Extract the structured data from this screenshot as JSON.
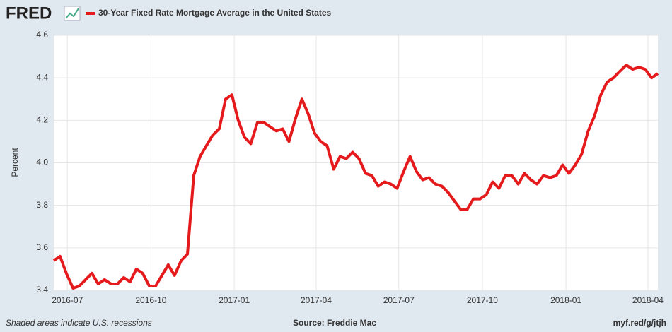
{
  "chart_data": {
    "type": "line",
    "logo": "FRED",
    "ylabel": "Percent",
    "footer_left": "Shaded areas indicate U.S. recessions",
    "footer_center": "Source: Freddie Mac",
    "footer_right": "myf.red/g/jtjh",
    "grid": true,
    "xlim": [
      2016.456,
      2018.277
    ],
    "ylim": [
      3.4,
      4.6
    ],
    "yticks": [
      3.4,
      3.6,
      3.8,
      {
        "value": 4,
        "label": "4.0"
      },
      4.2,
      4.4,
      4.6
    ],
    "xticks": [
      {
        "value": 2016.497,
        "label": "2016-07"
      },
      {
        "value": 2016.749,
        "label": "2016-10"
      },
      {
        "value": 2017.0,
        "label": "2017-01"
      },
      {
        "value": 2017.247,
        "label": "2017-04"
      },
      {
        "value": 2017.496,
        "label": "2017-07"
      },
      {
        "value": 2017.748,
        "label": "2017-10"
      },
      {
        "value": 2018.0,
        "label": "2018-01"
      },
      {
        "value": 2018.247,
        "label": "2018-04"
      }
    ],
    "x": [
      2016.456,
      2016.475,
      2016.494,
      2016.514,
      2016.533,
      2016.552,
      2016.571,
      2016.59,
      2016.609,
      2016.629,
      2016.648,
      2016.667,
      2016.686,
      2016.705,
      2016.724,
      2016.744,
      2016.763,
      2016.782,
      2016.801,
      2016.82,
      2016.84,
      2016.859,
      2016.878,
      2016.897,
      2016.916,
      2016.935,
      2016.955,
      2016.974,
      2016.993,
      2017.012,
      2017.031,
      2017.05,
      2017.07,
      2017.089,
      2017.108,
      2017.127,
      2017.146,
      2017.165,
      2017.185,
      2017.204,
      2017.223,
      2017.242,
      2017.261,
      2017.28,
      2017.3,
      2017.319,
      2017.338,
      2017.357,
      2017.376,
      2017.396,
      2017.415,
      2017.434,
      2017.453,
      2017.472,
      2017.491,
      2017.511,
      2017.53,
      2017.549,
      2017.568,
      2017.587,
      2017.606,
      2017.626,
      2017.645,
      2017.664,
      2017.683,
      2017.702,
      2017.721,
      2017.741,
      2017.76,
      2017.779,
      2017.798,
      2017.817,
      2017.837,
      2017.856,
      2017.875,
      2017.894,
      2017.913,
      2017.932,
      2017.952,
      2017.971,
      2017.99,
      2018.009,
      2018.028,
      2018.047,
      2018.067,
      2018.086,
      2018.105,
      2018.124,
      2018.143,
      2018.162,
      2018.182,
      2018.201,
      2018.22,
      2018.239,
      2018.258,
      2018.277
    ],
    "series": [
      {
        "name": "30-Year Fixed Rate Mortgage Average in the United States",
        "color": "#e41a1c",
        "values": [
          3.54,
          3.56,
          3.48,
          3.41,
          3.42,
          3.45,
          3.48,
          3.43,
          3.45,
          3.43,
          3.43,
          3.46,
          3.44,
          3.5,
          3.48,
          3.42,
          3.42,
          3.47,
          3.52,
          3.47,
          3.54,
          3.57,
          3.94,
          4.03,
          4.08,
          4.13,
          4.16,
          4.3,
          4.32,
          4.2,
          4.12,
          4.09,
          4.19,
          4.19,
          4.17,
          4.15,
          4.16,
          4.1,
          4.21,
          4.3,
          4.23,
          4.14,
          4.1,
          4.08,
          3.97,
          4.03,
          4.02,
          4.05,
          4.02,
          3.95,
          3.94,
          3.89,
          3.91,
          3.9,
          3.88,
          3.96,
          4.03,
          3.96,
          3.92,
          3.93,
          3.9,
          3.89,
          3.86,
          3.82,
          3.78,
          3.78,
          3.83,
          3.83,
          3.85,
          3.91,
          3.88,
          3.94,
          3.94,
          3.9,
          3.95,
          3.92,
          3.9,
          3.94,
          3.93,
          3.94,
          3.99,
          3.95,
          3.99,
          4.04,
          4.15,
          4.22,
          4.32,
          4.38,
          4.4,
          4.43,
          4.46,
          4.44,
          4.45,
          4.44,
          4.4,
          4.42
        ]
      }
    ]
  }
}
